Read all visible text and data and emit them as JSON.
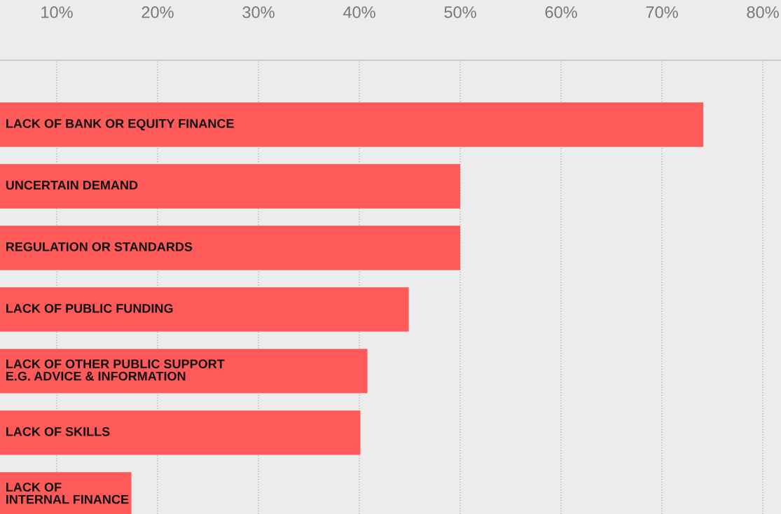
{
  "chart_data": {
    "type": "bar",
    "orientation": "horizontal",
    "categories": [
      "LACK OF BANK OR EQUITY FINANCE",
      "UNCERTAIN DEMAND",
      "REGULATION OR STANDARDS",
      "LACK OF PUBLIC FUNDING",
      "LACK OF OTHER PUBLIC SUPPORT\nE.G. ADVICE & INFORMATION",
      "LACK OF SKILLS",
      "LACK OF\nINTERNAL FINANCE"
    ],
    "values": [
      74.1,
      50,
      50,
      44.9,
      40.8,
      40.1,
      17.4
    ],
    "color": "#ff5a5a",
    "xlim": [
      4.375,
      81.8
    ],
    "xticks": [
      {
        "value": 10,
        "label": "10%"
      },
      {
        "value": 20,
        "label": "20%"
      },
      {
        "value": 30,
        "label": "30%"
      },
      {
        "value": 40,
        "label": "40%"
      },
      {
        "value": 50,
        "label": "50%"
      },
      {
        "value": 60,
        "label": "60%"
      },
      {
        "value": 70,
        "label": "70%"
      },
      {
        "value": 80,
        "label": "80%"
      }
    ],
    "grid": "x",
    "legend": false
  }
}
